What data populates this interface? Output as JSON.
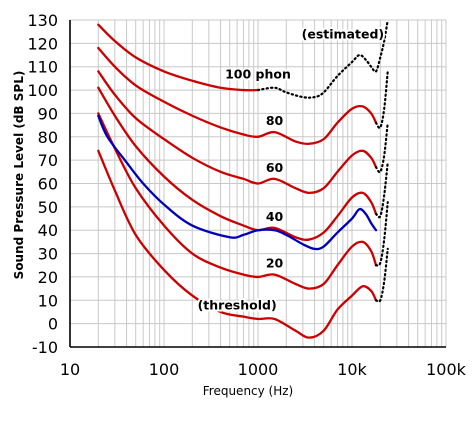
{
  "chart_data": {
    "type": "line",
    "xlabel": "Frequency (Hz)",
    "ylabel": "Sound Pressure Level (dB SPL)",
    "xscale": "log",
    "xlim": [
      10,
      100000
    ],
    "ylim": [
      -10,
      130
    ],
    "grid": true,
    "x_ticks": [
      "10",
      "100",
      "1000",
      "10k",
      "100k"
    ],
    "y_ticks": [
      "130",
      "120",
      "110",
      "100",
      "90",
      "80",
      "70",
      "60",
      "50",
      "40",
      "30",
      "20",
      "10",
      "0",
      "-10"
    ],
    "annotations": [
      "(estimated)",
      "100 phon",
      "80",
      "60",
      "40",
      "20",
      "(threshold)"
    ],
    "series": [
      {
        "color": "#cc0000",
        "points": [
          [
            20,
            74
          ],
          [
            30,
            57
          ],
          [
            50,
            38
          ],
          [
            100,
            23
          ],
          [
            200,
            12
          ],
          [
            400,
            5
          ],
          [
            700,
            3
          ],
          [
            1000,
            2
          ],
          [
            1500,
            2
          ],
          [
            2500,
            -3
          ],
          [
            3500,
            -6
          ],
          [
            5000,
            -3
          ],
          [
            7000,
            6
          ],
          [
            10000,
            12
          ],
          [
            13000,
            16
          ],
          [
            16000,
            14
          ],
          [
            18000,
            10
          ]
        ]
      },
      {
        "color": "#cc0000",
        "points": [
          [
            20,
            90
          ],
          [
            30,
            75
          ],
          [
            50,
            58
          ],
          [
            100,
            42
          ],
          [
            200,
            30
          ],
          [
            400,
            24
          ],
          [
            700,
            21
          ],
          [
            1000,
            20
          ],
          [
            1500,
            21
          ],
          [
            2500,
            17
          ],
          [
            3500,
            15
          ],
          [
            5000,
            17
          ],
          [
            7000,
            25
          ],
          [
            10000,
            33
          ],
          [
            13000,
            35
          ],
          [
            16000,
            31
          ],
          [
            18000,
            25
          ]
        ]
      },
      {
        "color": "#cc0000",
        "points": [
          [
            20,
            101
          ],
          [
            30,
            89
          ],
          [
            50,
            76
          ],
          [
            100,
            63
          ],
          [
            200,
            53
          ],
          [
            400,
            46
          ],
          [
            700,
            42
          ],
          [
            1000,
            40
          ],
          [
            1500,
            41
          ],
          [
            2500,
            37
          ],
          [
            3500,
            36
          ],
          [
            5000,
            39
          ],
          [
            7000,
            46
          ],
          [
            10000,
            54
          ],
          [
            13000,
            56
          ],
          [
            16000,
            52
          ],
          [
            18000,
            47
          ]
        ]
      },
      {
        "color": "#cc0000",
        "points": [
          [
            20,
            108
          ],
          [
            30,
            98
          ],
          [
            50,
            88
          ],
          [
            100,
            79
          ],
          [
            200,
            71
          ],
          [
            400,
            65
          ],
          [
            700,
            62
          ],
          [
            1000,
            60
          ],
          [
            1500,
            62
          ],
          [
            2500,
            58
          ],
          [
            3500,
            56
          ],
          [
            5000,
            58
          ],
          [
            7000,
            65
          ],
          [
            10000,
            72
          ],
          [
            13000,
            74
          ],
          [
            16000,
            71
          ],
          [
            18000,
            67
          ]
        ]
      },
      {
        "color": "#cc0000",
        "points": [
          [
            20,
            118
          ],
          [
            30,
            110
          ],
          [
            50,
            102
          ],
          [
            100,
            95
          ],
          [
            200,
            89
          ],
          [
            400,
            84
          ],
          [
            700,
            81
          ],
          [
            1000,
            80
          ],
          [
            1500,
            82
          ],
          [
            2500,
            78
          ],
          [
            3500,
            77
          ],
          [
            5000,
            79
          ],
          [
            7000,
            86
          ],
          [
            10000,
            92
          ],
          [
            13000,
            93
          ],
          [
            16000,
            90
          ],
          [
            18000,
            86
          ]
        ]
      },
      {
        "color": "#cc0000",
        "points": [
          [
            20,
            128
          ],
          [
            30,
            121
          ],
          [
            50,
            114
          ],
          [
            100,
            108
          ],
          [
            200,
            104
          ],
          [
            400,
            101
          ],
          [
            700,
            100
          ],
          [
            1000,
            100
          ]
        ]
      },
      {
        "color": "#0000bb",
        "points": [
          [
            20,
            89
          ],
          [
            25,
            80
          ],
          [
            40,
            69
          ],
          [
            60,
            60
          ],
          [
            100,
            51
          ],
          [
            200,
            42
          ],
          [
            500,
            37
          ],
          [
            700,
            38
          ],
          [
            1000,
            40
          ],
          [
            1500,
            40
          ],
          [
            2000,
            38
          ],
          [
            3000,
            34
          ],
          [
            4000,
            32
          ],
          [
            5000,
            33
          ],
          [
            7000,
            39
          ],
          [
            10000,
            45
          ],
          [
            12000,
            49
          ],
          [
            14000,
            47
          ],
          [
            16000,
            43
          ],
          [
            18000,
            40
          ]
        ]
      }
    ],
    "estimated_series": [
      {
        "points": [
          [
            1000,
            100
          ],
          [
            1500,
            101
          ],
          [
            2000,
            99
          ],
          [
            3000,
            97
          ],
          [
            4000,
            97
          ],
          [
            5000,
            99
          ],
          [
            7000,
            106
          ],
          [
            10000,
            112
          ],
          [
            12000,
            115
          ],
          [
            14000,
            113
          ],
          [
            16000,
            110
          ],
          [
            18000,
            108
          ],
          [
            20000,
            114
          ],
          [
            22000,
            121
          ],
          [
            24000,
            130
          ]
        ]
      },
      {
        "points": [
          [
            18000,
            86
          ],
          [
            20000,
            84
          ],
          [
            22000,
            92
          ],
          [
            24000,
            108
          ]
        ]
      },
      {
        "points": [
          [
            18000,
            67
          ],
          [
            20000,
            65
          ],
          [
            22000,
            72
          ],
          [
            24000,
            86
          ]
        ]
      },
      {
        "points": [
          [
            18000,
            47
          ],
          [
            20000,
            46
          ],
          [
            22000,
            55
          ],
          [
            24000,
            69
          ]
        ]
      },
      {
        "points": [
          [
            18000,
            25
          ],
          [
            20000,
            26
          ],
          [
            22000,
            36
          ],
          [
            24000,
            52
          ]
        ]
      },
      {
        "points": [
          [
            18000,
            10
          ],
          [
            20000,
            10
          ],
          [
            22000,
            18
          ],
          [
            24000,
            32
          ]
        ]
      }
    ],
    "annotation_positions": [
      {
        "text_index": 0,
        "x": 8000,
        "y": 122
      },
      {
        "text_index": 1,
        "x": 1000,
        "y": 105
      },
      {
        "text_index": 2,
        "x": 1500,
        "y": 85
      },
      {
        "text_index": 3,
        "x": 1500,
        "y": 65
      },
      {
        "text_index": 4,
        "x": 1500,
        "y": 44
      },
      {
        "text_index": 5,
        "x": 1500,
        "y": 24
      },
      {
        "text_index": 6,
        "x": 600,
        "y": 6
      }
    ]
  }
}
